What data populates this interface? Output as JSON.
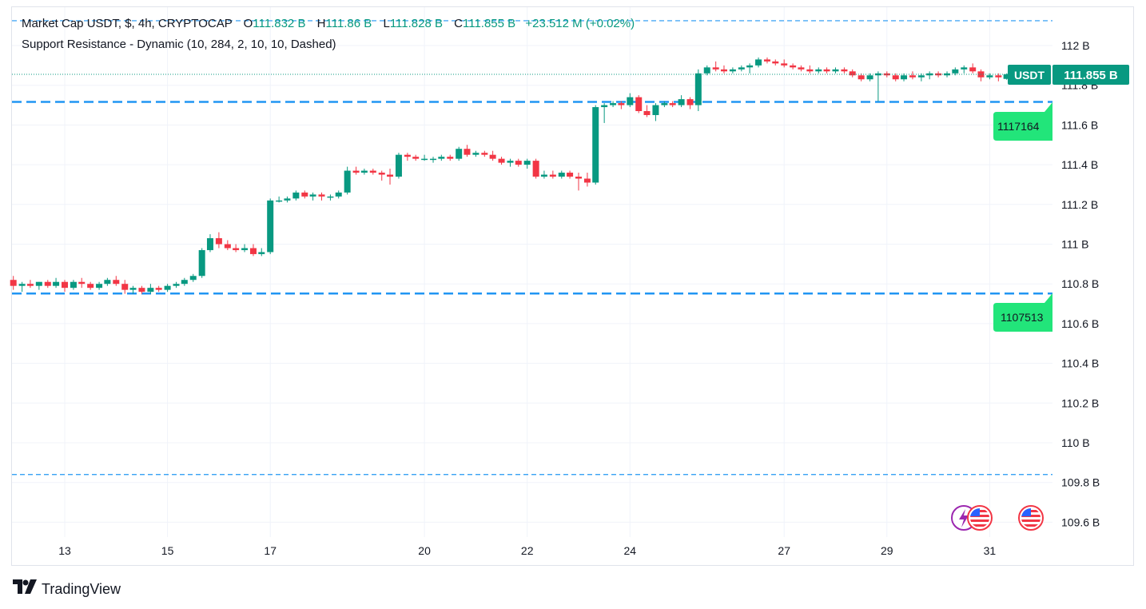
{
  "legend": {
    "symbol": "Market Cap USDT, $, 4h, CRYPTOCAP",
    "open_label": "O",
    "open": "111.832 B",
    "high_label": "H",
    "high": "111.86 B",
    "low_label": "L",
    "low": "111.828 B",
    "close_label": "C",
    "close": "111.855 B",
    "change": "+23.512 M (+0.02%)",
    "indicator": "Support Resistance - Dynamic (10, 284, 2, 10, 10, Dashed)"
  },
  "price_tag": {
    "ticker": "USDT",
    "value": "111.855 B",
    "color": "#089981"
  },
  "level_tags": {
    "resistance": "1117164",
    "support": "1107513",
    "color": "#22e57a"
  },
  "brand": "TradingView",
  "colors": {
    "up": "#089981",
    "down": "#f23645",
    "sr_line": "#2196f3"
  },
  "chart_data": {
    "type": "candlestick",
    "interval": "4h",
    "units": "B USD",
    "ylim": [
      109.52,
      112.13
    ],
    "y_ticks": [
      "112 B",
      "111.8 B",
      "111.6 B",
      "111.4 B",
      "111.2 B",
      "111 B",
      "110.8 B",
      "110.6 B",
      "110.4 B",
      "110.2 B",
      "110 B",
      "109.8 B",
      "109.6 B"
    ],
    "y_tick_values": [
      112.0,
      111.8,
      111.6,
      111.4,
      111.2,
      111.0,
      110.8,
      110.6,
      110.4,
      110.2,
      110.0,
      109.8,
      109.6
    ],
    "x_ticks": [
      "13",
      "15",
      "17",
      "20",
      "22",
      "24",
      "27",
      "29",
      "31"
    ],
    "x_tick_days": [
      13,
      15,
      17,
      20,
      22,
      24,
      27,
      29,
      31
    ],
    "day_range": [
      12.0,
      31.95
    ],
    "last_price": 111.855,
    "levels": [
      {
        "value": 112.125,
        "style": "thin-dashed"
      },
      {
        "value": 111.7164,
        "style": "thick-dashed"
      },
      {
        "value": 110.7513,
        "style": "thick-dashed"
      },
      {
        "value": 109.84,
        "style": "thin-dashed"
      }
    ],
    "candles": [
      [
        12.0,
        110.82,
        110.84,
        110.77,
        110.79
      ],
      [
        12.17,
        110.79,
        110.81,
        110.76,
        110.8
      ],
      [
        12.33,
        110.8,
        110.82,
        110.78,
        110.79
      ],
      [
        12.5,
        110.79,
        110.81,
        110.77,
        110.81
      ],
      [
        12.67,
        110.81,
        110.82,
        110.78,
        110.79
      ],
      [
        12.83,
        110.79,
        110.83,
        110.78,
        110.81
      ],
      [
        13.0,
        110.81,
        110.82,
        110.76,
        110.78
      ],
      [
        13.17,
        110.78,
        110.82,
        110.77,
        110.81
      ],
      [
        13.33,
        110.81,
        110.83,
        110.78,
        110.8
      ],
      [
        13.5,
        110.8,
        110.81,
        110.77,
        110.78
      ],
      [
        13.67,
        110.78,
        110.81,
        110.77,
        110.8
      ],
      [
        13.83,
        110.8,
        110.83,
        110.79,
        110.82
      ],
      [
        14.0,
        110.82,
        110.84,
        110.79,
        110.8
      ],
      [
        14.17,
        110.8,
        110.82,
        110.75,
        110.77
      ],
      [
        14.33,
        110.77,
        110.79,
        110.75,
        110.78
      ],
      [
        14.5,
        110.78,
        110.79,
        110.75,
        110.76
      ],
      [
        14.67,
        110.76,
        110.8,
        110.75,
        110.78
      ],
      [
        14.83,
        110.78,
        110.79,
        110.76,
        110.77
      ],
      [
        15.0,
        110.77,
        110.8,
        110.76,
        110.79
      ],
      [
        15.17,
        110.79,
        110.81,
        110.78,
        110.8
      ],
      [
        15.33,
        110.8,
        110.83,
        110.79,
        110.82
      ],
      [
        15.5,
        110.82,
        110.85,
        110.81,
        110.84
      ],
      [
        15.67,
        110.84,
        110.98,
        110.83,
        110.97
      ],
      [
        15.83,
        110.97,
        111.05,
        110.96,
        111.03
      ],
      [
        16.0,
        111.03,
        111.06,
        110.98,
        111.0
      ],
      [
        16.17,
        111.0,
        111.02,
        110.97,
        110.98
      ],
      [
        16.33,
        110.98,
        111.0,
        110.96,
        110.97
      ],
      [
        16.5,
        110.97,
        111.0,
        110.96,
        110.98
      ],
      [
        16.67,
        110.98,
        111.0,
        110.94,
        110.95
      ],
      [
        16.83,
        110.95,
        110.98,
        110.94,
        110.96
      ],
      [
        17.0,
        110.96,
        111.23,
        110.95,
        111.22
      ],
      [
        17.17,
        111.22,
        111.24,
        111.21,
        111.22
      ],
      [
        17.33,
        111.22,
        111.24,
        111.21,
        111.23
      ],
      [
        17.5,
        111.23,
        111.27,
        111.22,
        111.26
      ],
      [
        17.67,
        111.26,
        111.27,
        111.23,
        111.24
      ],
      [
        17.83,
        111.24,
        111.26,
        111.22,
        111.25
      ],
      [
        18.0,
        111.25,
        111.26,
        111.22,
        111.24
      ],
      [
        18.17,
        111.24,
        111.25,
        111.22,
        111.24
      ],
      [
        18.33,
        111.24,
        111.27,
        111.23,
        111.26
      ],
      [
        18.5,
        111.26,
        111.39,
        111.25,
        111.37
      ],
      [
        18.67,
        111.37,
        111.39,
        111.35,
        111.36
      ],
      [
        18.83,
        111.36,
        111.38,
        111.35,
        111.37
      ],
      [
        19.0,
        111.37,
        111.38,
        111.35,
        111.36
      ],
      [
        19.17,
        111.36,
        111.37,
        111.32,
        111.35
      ],
      [
        19.33,
        111.35,
        111.38,
        111.3,
        111.34
      ],
      [
        19.5,
        111.34,
        111.46,
        111.33,
        111.45
      ],
      [
        19.67,
        111.45,
        111.46,
        111.42,
        111.44
      ],
      [
        19.83,
        111.44,
        111.45,
        111.42,
        111.43
      ],
      [
        20.0,
        111.43,
        111.45,
        111.42,
        111.43
      ],
      [
        20.17,
        111.43,
        111.44,
        111.41,
        111.43
      ],
      [
        20.33,
        111.43,
        111.45,
        111.42,
        111.44
      ],
      [
        20.5,
        111.44,
        111.45,
        111.42,
        111.43
      ],
      [
        20.67,
        111.43,
        111.49,
        111.42,
        111.48
      ],
      [
        20.83,
        111.48,
        111.5,
        111.44,
        111.45
      ],
      [
        21.0,
        111.45,
        111.47,
        111.44,
        111.46
      ],
      [
        21.17,
        111.46,
        111.47,
        111.44,
        111.45
      ],
      [
        21.33,
        111.45,
        111.47,
        111.42,
        111.43
      ],
      [
        21.5,
        111.43,
        111.44,
        111.4,
        111.41
      ],
      [
        21.67,
        111.41,
        111.43,
        111.39,
        111.42
      ],
      [
        21.83,
        111.42,
        111.43,
        111.39,
        111.4
      ],
      [
        22.0,
        111.4,
        111.43,
        111.38,
        111.42
      ],
      [
        22.17,
        111.42,
        111.43,
        111.33,
        111.34
      ],
      [
        22.33,
        111.34,
        111.37,
        111.33,
        111.35
      ],
      [
        22.5,
        111.35,
        111.37,
        111.33,
        111.34
      ],
      [
        22.67,
        111.34,
        111.37,
        111.33,
        111.36
      ],
      [
        22.83,
        111.36,
        111.37,
        111.33,
        111.34
      ],
      [
        23.0,
        111.34,
        111.36,
        111.27,
        111.33
      ],
      [
        23.17,
        111.33,
        111.36,
        111.29,
        111.31
      ],
      [
        23.33,
        111.31,
        111.7,
        111.3,
        111.69
      ],
      [
        23.5,
        111.69,
        111.71,
        111.61,
        111.7
      ],
      [
        23.67,
        111.7,
        111.72,
        111.69,
        111.71
      ],
      [
        23.83,
        111.71,
        111.72,
        111.68,
        111.7
      ],
      [
        24.0,
        111.7,
        111.76,
        111.69,
        111.74
      ],
      [
        24.17,
        111.74,
        111.75,
        111.66,
        111.67
      ],
      [
        24.33,
        111.67,
        111.7,
        111.64,
        111.65
      ],
      [
        24.5,
        111.65,
        111.71,
        111.62,
        111.7
      ],
      [
        24.67,
        111.7,
        111.72,
        111.69,
        111.71
      ],
      [
        24.83,
        111.71,
        111.72,
        111.69,
        111.7
      ],
      [
        25.0,
        111.7,
        111.75,
        111.69,
        111.73
      ],
      [
        25.17,
        111.73,
        111.74,
        111.68,
        111.7
      ],
      [
        25.33,
        111.7,
        111.88,
        111.67,
        111.86
      ],
      [
        25.5,
        111.86,
        111.9,
        111.85,
        111.89
      ],
      [
        25.67,
        111.89,
        111.92,
        111.87,
        111.88
      ],
      [
        25.83,
        111.88,
        111.9,
        111.86,
        111.87
      ],
      [
        26.0,
        111.87,
        111.89,
        111.86,
        111.88
      ],
      [
        26.17,
        111.88,
        111.9,
        111.87,
        111.89
      ],
      [
        26.33,
        111.89,
        111.91,
        111.86,
        111.9
      ],
      [
        26.5,
        111.9,
        111.94,
        111.89,
        111.93
      ],
      [
        26.67,
        111.93,
        111.94,
        111.91,
        111.92
      ],
      [
        26.83,
        111.92,
        111.93,
        111.9,
        111.91
      ],
      [
        27.0,
        111.91,
        111.93,
        111.89,
        111.9
      ],
      [
        27.17,
        111.9,
        111.91,
        111.88,
        111.89
      ],
      [
        27.33,
        111.89,
        111.9,
        111.87,
        111.88
      ],
      [
        27.5,
        111.88,
        111.9,
        111.86,
        111.87
      ],
      [
        27.67,
        111.87,
        111.89,
        111.86,
        111.88
      ],
      [
        27.83,
        111.88,
        111.89,
        111.86,
        111.87
      ],
      [
        28.0,
        111.87,
        111.89,
        111.86,
        111.88
      ],
      [
        28.17,
        111.88,
        111.89,
        111.86,
        111.87
      ],
      [
        28.33,
        111.87,
        111.88,
        111.84,
        111.85
      ],
      [
        28.5,
        111.85,
        111.86,
        111.82,
        111.83
      ],
      [
        28.67,
        111.83,
        111.86,
        111.82,
        111.85
      ],
      [
        28.83,
        111.85,
        111.87,
        111.72,
        111.86
      ],
      [
        29.0,
        111.86,
        111.87,
        111.84,
        111.85
      ],
      [
        29.17,
        111.85,
        111.86,
        111.82,
        111.83
      ],
      [
        29.33,
        111.83,
        111.86,
        111.82,
        111.85
      ],
      [
        29.5,
        111.85,
        111.87,
        111.83,
        111.84
      ],
      [
        29.67,
        111.84,
        111.86,
        111.82,
        111.85
      ],
      [
        29.83,
        111.85,
        111.87,
        111.83,
        111.86
      ],
      [
        30.0,
        111.86,
        111.87,
        111.84,
        111.85
      ],
      [
        30.17,
        111.85,
        111.87,
        111.84,
        111.86
      ],
      [
        30.33,
        111.86,
        111.89,
        111.85,
        111.88
      ],
      [
        30.5,
        111.88,
        111.9,
        111.86,
        111.89
      ],
      [
        30.67,
        111.89,
        111.91,
        111.86,
        111.87
      ],
      [
        30.83,
        111.87,
        111.88,
        111.82,
        111.84
      ],
      [
        31.0,
        111.84,
        111.86,
        111.83,
        111.85
      ],
      [
        31.17,
        111.85,
        111.86,
        111.82,
        111.84
      ],
      [
        31.33,
        111.832,
        111.86,
        111.828,
        111.855
      ]
    ]
  }
}
